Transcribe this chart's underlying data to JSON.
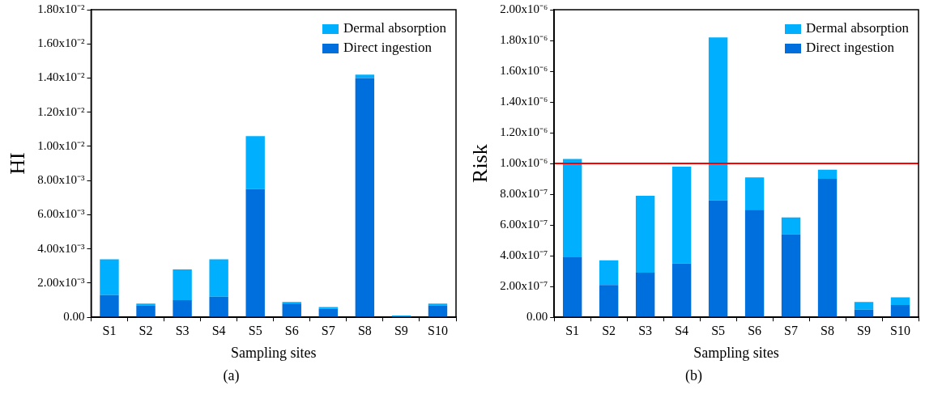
{
  "chart_data": [
    {
      "type": "bar",
      "stacked": true,
      "xlabel": "Sampling sites",
      "ylabel": "HI",
      "legend": "top right",
      "categories": [
        "S1",
        "S2",
        "S3",
        "S4",
        "S5",
        "S6",
        "S7",
        "S8",
        "S9",
        "S10"
      ],
      "series": [
        {
          "name": "Direct ingestion",
          "color": "#006fde",
          "values": [
            0.0013,
            0.0007,
            0.001,
            0.0012,
            0.0075,
            0.0008,
            0.0005,
            0.014,
            null,
            0.0007
          ]
        },
        {
          "name": "Dermal absorption",
          "color": "#00b0ff",
          "values": [
            0.0021,
            0.0001,
            0.0018,
            0.0022,
            0.0031,
            0.0001,
            0.0001,
            0.0002,
            0.0001,
            0.0001
          ]
        }
      ],
      "ylim": [
        0,
        0.018
      ],
      "yticks": [
        {
          "value": 0,
          "label": "0.00"
        },
        {
          "value": 0.002,
          "label": "2.00x10⁻³"
        },
        {
          "value": 0.004,
          "label": "4.00x10⁻³"
        },
        {
          "value": 0.006,
          "label": "6.00x10⁻³"
        },
        {
          "value": 0.008,
          "label": "8.00x10⁻³"
        },
        {
          "value": 0.01,
          "label": "1.00x10⁻²"
        },
        {
          "value": 0.012,
          "label": "1.20x10⁻²"
        },
        {
          "value": 0.014,
          "label": "1.40x10⁻²"
        },
        {
          "value": 0.016,
          "label": "1.60x10⁻²"
        },
        {
          "value": 0.018,
          "label": "1.80x10⁻²"
        }
      ],
      "annotations": [
        "(a)"
      ]
    },
    {
      "type": "bar",
      "stacked": true,
      "xlabel": "Sampling sites",
      "ylabel": "Risk",
      "legend": "top right",
      "categories": [
        "S1",
        "S2",
        "S3",
        "S4",
        "S5",
        "S6",
        "S7",
        "S8",
        "S9",
        "S10"
      ],
      "series": [
        {
          "name": "Direct ingestion",
          "color": "#006fde",
          "values": [
            3.9e-07,
            2.1e-07,
            2.9e-07,
            3.5e-07,
            7.6e-07,
            7e-07,
            5.4e-07,
            9e-07,
            5e-08,
            8e-08
          ]
        },
        {
          "name": "Dermal absorption",
          "color": "#00b0ff",
          "values": [
            6.4e-07,
            1.6e-07,
            5e-07,
            6.3e-07,
            1.06e-06,
            2.1e-07,
            1.1e-07,
            6e-08,
            5e-08,
            5e-08
          ]
        }
      ],
      "ylim": [
        0,
        2e-06
      ],
      "yticks": [
        {
          "value": 0,
          "label": "0.00"
        },
        {
          "value": 2e-07,
          "label": "2.00x10⁻⁷"
        },
        {
          "value": 4e-07,
          "label": "4.00x10⁻⁷"
        },
        {
          "value": 6e-07,
          "label": "6.00x10⁻⁷"
        },
        {
          "value": 8e-07,
          "label": "8.00x10⁻⁷"
        },
        {
          "value": 1e-06,
          "label": "1.00x10⁻⁶"
        },
        {
          "value": 1.2e-06,
          "label": "1.20x10⁻⁶"
        },
        {
          "value": 1.4e-06,
          "label": "1.40x10⁻⁶"
        },
        {
          "value": 1.6e-06,
          "label": "1.60x10⁻⁶"
        },
        {
          "value": 1.8e-06,
          "label": "1.80x10⁻⁶"
        },
        {
          "value": 2e-06,
          "label": "2.00x10⁻⁶"
        }
      ],
      "ref_lines": [
        {
          "axis": "y",
          "value": 1e-06,
          "color": "#ff0000",
          "line_style": "solid"
        }
      ],
      "annotations": [
        "(b)"
      ]
    }
  ]
}
